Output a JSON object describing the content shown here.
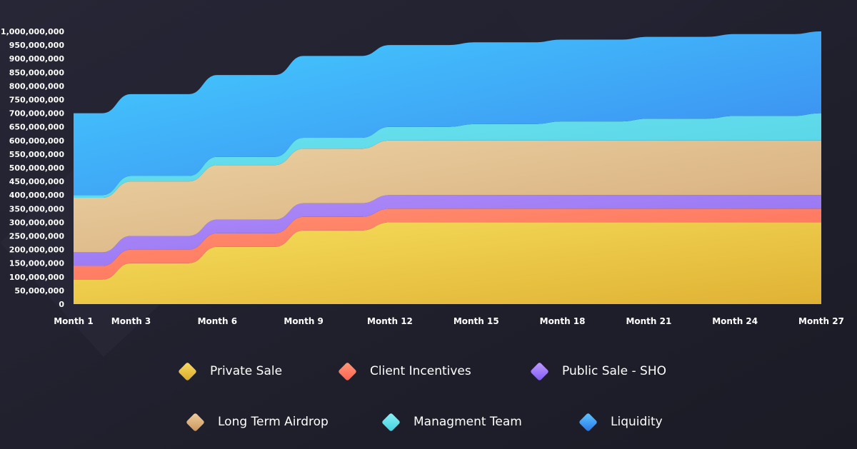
{
  "chart_data": {
    "type": "area",
    "stacked": true,
    "title": "",
    "xlabel": "",
    "ylabel": "",
    "ylim": [
      0,
      1000000000
    ],
    "y_ticks": [
      "1,000,000,000",
      "950,000,000",
      "900,000,000",
      "850,000,000",
      "800,000,000",
      "750,000,000",
      "700,000,000",
      "650,000,000",
      "600,000,000",
      "550,000,000",
      "500,000,000",
      "450,000,000",
      "400,000,000",
      "350,000,000",
      "300,000,000",
      "250,000,000",
      "200,000,000",
      "150,000,000",
      "100,000,000",
      "50,000,000",
      "0"
    ],
    "x_ticks": [
      "Month 1",
      "Month 3",
      "Month 6",
      "Month 9",
      "Month 12",
      "Month 15",
      "Month 18",
      "Month 21",
      "Month 24",
      "Month 27"
    ],
    "x": [
      1,
      2,
      3,
      4,
      5,
      6,
      7,
      8,
      9,
      10,
      11,
      12,
      13,
      14,
      15,
      16,
      17,
      18,
      19,
      20,
      21,
      22,
      23,
      24,
      25,
      26,
      27
    ],
    "series": [
      {
        "name": "Private Sale",
        "color": "#f3cf4f",
        "values": [
          90000000,
          90000000,
          150000000,
          150000000,
          150000000,
          210000000,
          210000000,
          210000000,
          270000000,
          270000000,
          270000000,
          300000000,
          300000000,
          300000000,
          300000000,
          300000000,
          300000000,
          300000000,
          300000000,
          300000000,
          300000000,
          300000000,
          300000000,
          300000000,
          300000000,
          300000000,
          300000000
        ]
      },
      {
        "name": "Client Incentives",
        "color": "#ff7a63",
        "values": [
          50000000,
          50000000,
          50000000,
          50000000,
          50000000,
          50000000,
          50000000,
          50000000,
          50000000,
          50000000,
          50000000,
          50000000,
          50000000,
          50000000,
          50000000,
          50000000,
          50000000,
          50000000,
          50000000,
          50000000,
          50000000,
          50000000,
          50000000,
          50000000,
          50000000,
          50000000,
          50000000
        ]
      },
      {
        "name": "Public Sale - SHO",
        "color": "#a77ef5",
        "values": [
          50000000,
          50000000,
          50000000,
          50000000,
          50000000,
          50000000,
          50000000,
          50000000,
          50000000,
          50000000,
          50000000,
          50000000,
          50000000,
          50000000,
          50000000,
          50000000,
          50000000,
          50000000,
          50000000,
          50000000,
          50000000,
          50000000,
          50000000,
          50000000,
          50000000,
          50000000,
          50000000
        ]
      },
      {
        "name": "Long Term Airdrop",
        "color": "#e3b985",
        "values": [
          200000000,
          200000000,
          200000000,
          200000000,
          200000000,
          200000000,
          200000000,
          200000000,
          200000000,
          200000000,
          200000000,
          200000000,
          200000000,
          200000000,
          200000000,
          200000000,
          200000000,
          200000000,
          200000000,
          200000000,
          200000000,
          200000000,
          200000000,
          200000000,
          200000000,
          200000000,
          200000000
        ]
      },
      {
        "name": "Managment Team",
        "color": "#5fdbe8",
        "values": [
          10000000,
          10000000,
          20000000,
          20000000,
          20000000,
          30000000,
          30000000,
          30000000,
          40000000,
          40000000,
          40000000,
          50000000,
          50000000,
          50000000,
          60000000,
          60000000,
          60000000,
          70000000,
          70000000,
          70000000,
          80000000,
          80000000,
          80000000,
          90000000,
          90000000,
          90000000,
          100000000
        ]
      },
      {
        "name": "Liquidity",
        "color": "#3aa6f7",
        "values": [
          300000000,
          300000000,
          300000000,
          300000000,
          300000000,
          300000000,
          300000000,
          300000000,
          300000000,
          300000000,
          300000000,
          300000000,
          300000000,
          300000000,
          300000000,
          300000000,
          300000000,
          300000000,
          300000000,
          300000000,
          300000000,
          300000000,
          300000000,
          300000000,
          300000000,
          300000000,
          300000000
        ]
      }
    ],
    "legend_position": "bottom"
  }
}
